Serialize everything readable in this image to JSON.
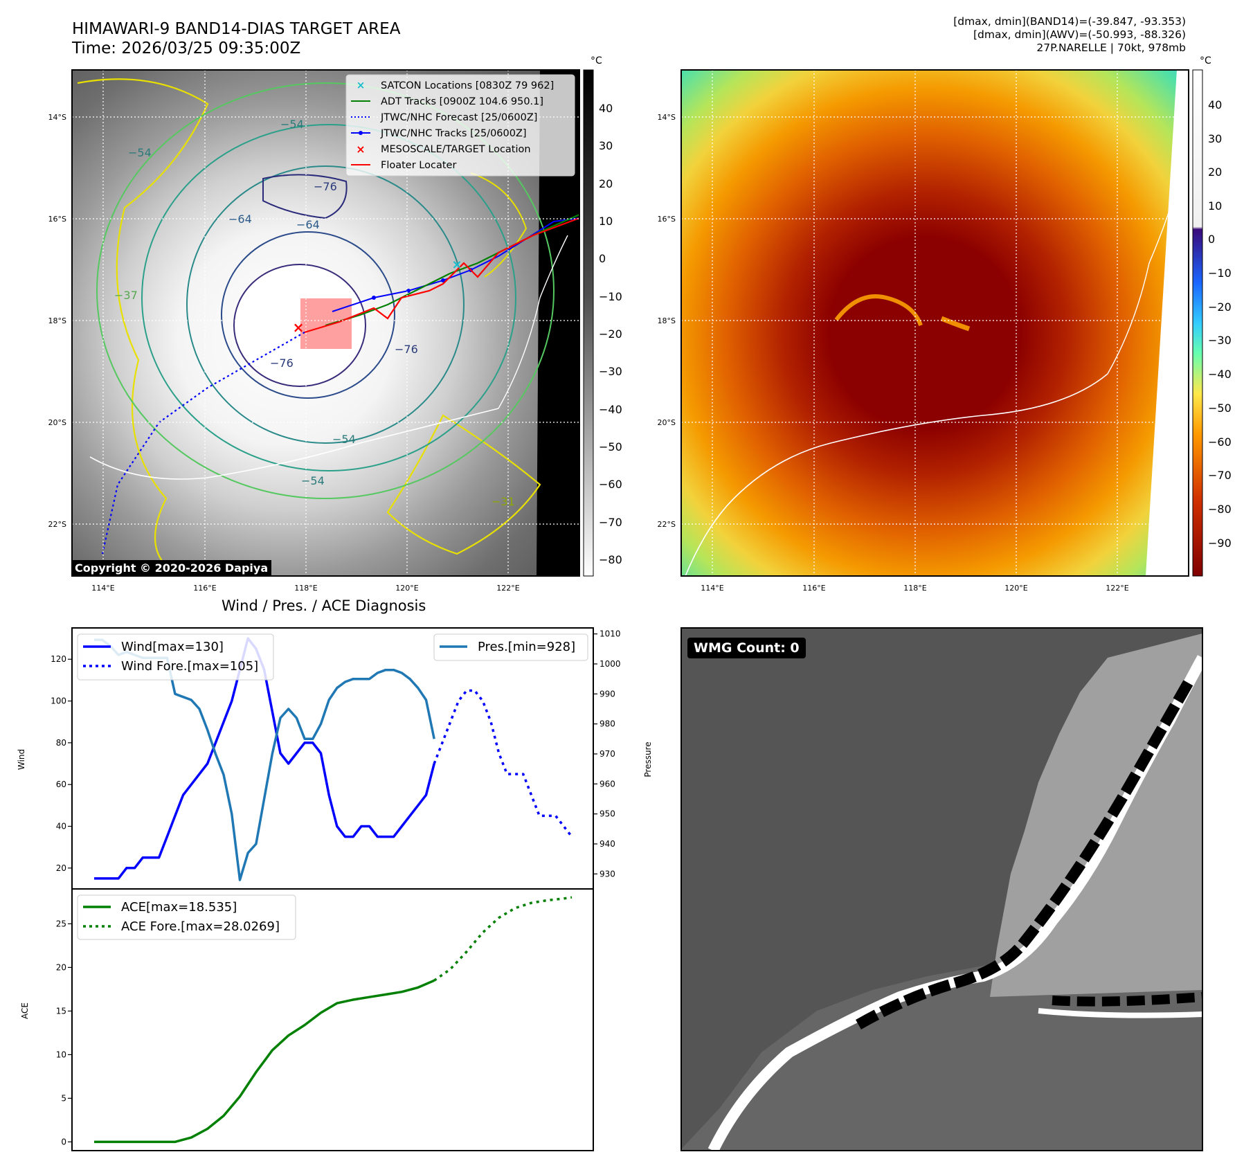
{
  "header": {
    "title_line1": "HIMAWARI-9 BAND14-DIAS TARGET AREA",
    "title_line2": "Time: 2026/03/25 09:35:00Z",
    "info_line1": "[dmax, dmin](BAND14)=(-39.847, -93.353)",
    "info_line2": "[dmax, dmin](AWV)=(-50.993, -88.326)",
    "info_line3": "27P.NARELLE | 70kt, 978mb"
  },
  "map_left": {
    "lat_labels": [
      "14°S",
      "16°S",
      "18°S",
      "20°S",
      "22°S"
    ],
    "lon_labels": [
      "114°E",
      "116°E",
      "118°E",
      "120°E",
      "122°E"
    ],
    "colorbar_unit": "°C",
    "colorbar_ticks": [
      "40",
      "30",
      "20",
      "10",
      "0",
      "−10",
      "−20",
      "−30",
      "−40",
      "−50",
      "−60",
      "−70",
      "−80"
    ],
    "contour_labels": [
      "−54",
      "−54",
      "−64",
      "−64",
      "−76",
      "−76",
      "−76",
      "−54",
      "−54",
      "−37",
      "−31"
    ],
    "copyright": "Copyright © 2020-2026 Dapiya",
    "legend": [
      "SATCON Locations [0830Z 79 962]",
      "ADT Tracks [0900Z 104.6 950.1]",
      "JTWC/NHC Forecast [25/0600Z]",
      "JTWC/NHC Tracks [25/0600Z]",
      "MESOSCALE/TARGET Location",
      "Floater Locater"
    ],
    "colors": {
      "satcon": "#17becf",
      "adt": "#008000",
      "forecast": "#0000ff",
      "track": "#0000ff",
      "target": "#ff0000",
      "floater": "#ff0000"
    }
  },
  "map_right": {
    "lat_labels": [
      "14°S",
      "16°S",
      "18°S",
      "20°S",
      "22°S"
    ],
    "lon_labels": [
      "114°E",
      "116°E",
      "118°E",
      "120°E",
      "122°E"
    ],
    "colorbar_unit": "°C",
    "colorbar_ticks": [
      "40",
      "30",
      "20",
      "10",
      "0",
      "−10",
      "−20",
      "−30",
      "−40",
      "−50",
      "−60",
      "−70",
      "−80",
      "−90"
    ]
  },
  "diag": {
    "title": "Wind / Pres. / ACE Diagnosis",
    "wind_ylabel": "Wind",
    "pres_ylabel": "Pressure",
    "ace_ylabel": "ACE",
    "legend_wind": "Wind[max=130]",
    "legend_wind_fore": "Wind Fore.[max=105]",
    "legend_pres": "Pres.[min=928]",
    "legend_ace": "ACE[max=18.535]",
    "legend_ace_fore": "ACE Fore.[max=28.0269]"
  },
  "wmg": {
    "label": "WMG Count: 0"
  },
  "chart_data": [
    {
      "type": "line",
      "title": "Wind / Pres. / ACE Diagnosis",
      "ylabel": "Wind",
      "ylim": [
        10,
        135
      ],
      "yticks": [
        20,
        40,
        60,
        80,
        100,
        120
      ],
      "series": [
        {
          "name": "Wind[max=130]",
          "color": "#0000ff",
          "style": "solid",
          "x": [
            0,
            1,
            2,
            3,
            4,
            5,
            6,
            7,
            8,
            9,
            10,
            11,
            12,
            13,
            14,
            15,
            16,
            17,
            18,
            19,
            20,
            21,
            22,
            23,
            24,
            25,
            26,
            27,
            28,
            29,
            30,
            31,
            32,
            33,
            34,
            35,
            36,
            37,
            38,
            39,
            40,
            41,
            42,
            43,
            44
          ],
          "values": [
            15,
            15,
            15,
            15,
            20,
            20,
            25,
            25,
            25,
            35,
            45,
            55,
            60,
            65,
            70,
            80,
            90,
            100,
            115,
            130,
            125,
            115,
            95,
            75,
            70,
            75,
            80,
            80,
            75,
            55,
            40,
            35,
            35,
            40,
            40,
            35,
            35,
            35,
            40,
            45,
            50,
            55,
            70,
            null,
            null
          ]
        },
        {
          "name": "Wind Fore.[max=105]",
          "color": "#0000ff",
          "style": "dotted",
          "x": [
            42,
            43,
            44,
            45,
            46,
            47,
            48,
            49,
            50,
            51,
            52,
            53,
            54,
            55,
            56,
            57,
            58,
            59
          ],
          "values": [
            70,
            80,
            90,
            100,
            105,
            105,
            100,
            90,
            75,
            65,
            65,
            65,
            55,
            45,
            45,
            45,
            40,
            35
          ]
        },
        {
          "name": "Pres.[min=928]",
          "color": "#1f77b4",
          "style": "solid",
          "axis": "right",
          "ylim": [
            925,
            1012
          ],
          "yticks": [
            930,
            940,
            950,
            960,
            970,
            980,
            990,
            1000,
            1010
          ],
          "x": [
            0,
            1,
            2,
            3,
            4,
            5,
            6,
            7,
            8,
            9,
            10,
            11,
            12,
            13,
            14,
            15,
            16,
            17,
            18,
            19,
            20,
            21,
            22,
            23,
            24,
            25,
            26,
            27,
            28,
            29,
            30,
            31,
            32,
            33,
            34,
            35,
            36,
            37,
            38,
            39,
            40,
            41,
            42
          ],
          "values": [
            1008,
            1008,
            1006,
            1003,
            1004,
            1003,
            1002,
            1002,
            1002,
            1002,
            990,
            989,
            988,
            985,
            978,
            970,
            963,
            950,
            928,
            937,
            940,
            955,
            970,
            982,
            985,
            982,
            975,
            975,
            980,
            988,
            992,
            994,
            995,
            995,
            995,
            997,
            998,
            998,
            997,
            995,
            992,
            988,
            975
          ]
        }
      ]
    },
    {
      "type": "line",
      "ylabel": "ACE",
      "ylim": [
        -1,
        29
      ],
      "yticks": [
        0,
        5,
        10,
        15,
        20,
        25
      ],
      "series": [
        {
          "name": "ACE[max=18.535]",
          "color": "#008000",
          "style": "solid",
          "x": [
            0,
            2,
            4,
            6,
            8,
            10,
            12,
            14,
            16,
            18,
            20,
            22,
            24,
            26,
            28,
            30,
            32,
            34,
            36,
            38,
            40,
            42
          ],
          "values": [
            0,
            0,
            0,
            0,
            0,
            0,
            0.5,
            1.5,
            3,
            5.2,
            8,
            10.5,
            12.2,
            13.4,
            14.8,
            15.9,
            16.3,
            16.6,
            16.9,
            17.2,
            17.7,
            18.5
          ]
        },
        {
          "name": "ACE Fore.[max=28.0269]",
          "color": "#008000",
          "style": "dotted",
          "x": [
            42,
            44,
            46,
            48,
            50,
            52,
            54,
            56,
            58,
            59
          ],
          "values": [
            18.5,
            19.8,
            21.8,
            24,
            25.7,
            26.8,
            27.4,
            27.7,
            27.9,
            28.03
          ]
        }
      ]
    }
  ]
}
